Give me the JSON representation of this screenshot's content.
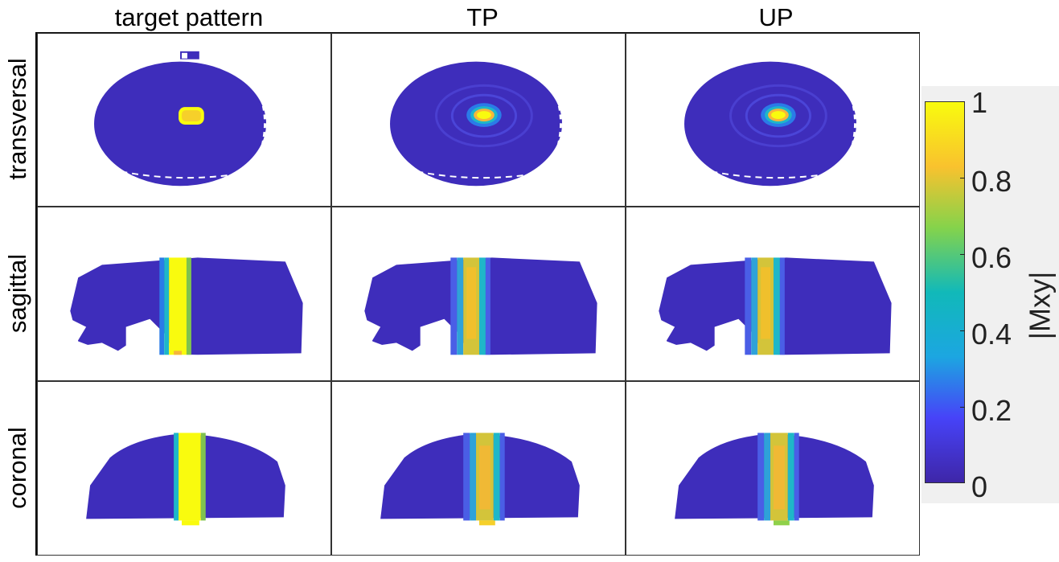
{
  "columns": [
    "target pattern",
    "TP",
    "UP"
  ],
  "rows": [
    "transversal",
    "sagittal",
    "coronal"
  ],
  "colorbar": {
    "label": "|Mxy|",
    "ticks": [
      "1",
      "0.8",
      "0.6",
      "0.4",
      "0.2",
      "0"
    ],
    "range": [
      0,
      1
    ],
    "colormap": [
      "#3e26a8",
      "#4743f8",
      "#1ca6e1",
      "#11b9b9",
      "#85d34b",
      "#f9c22e",
      "#f9fb0e"
    ]
  },
  "colors": {
    "background": "#3e2dbb",
    "high": "#f9fb0e",
    "mid": "#f6b63a",
    "cyan": "#1fb7c8",
    "lightblue": "#2a7be8"
  }
}
